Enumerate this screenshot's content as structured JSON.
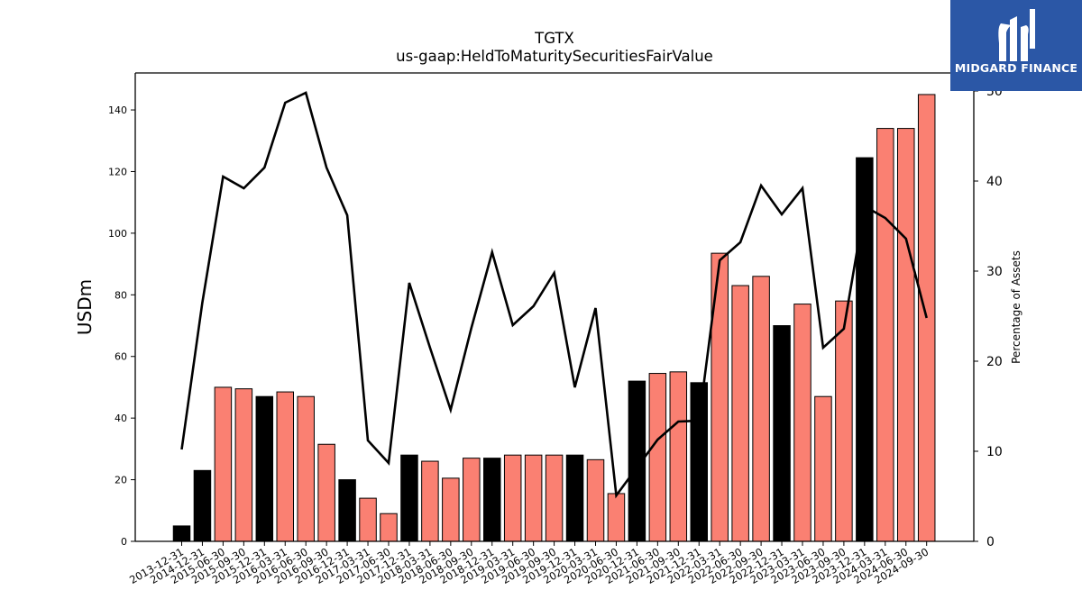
{
  "chart_data": {
    "type": "bar+line",
    "title": "TGTX",
    "subtitle": "us-gaap:HeldToMaturitySecuritiesFairValue",
    "ylabel": "USDm",
    "y2label": "Percentage of Assets",
    "ylim": [
      0,
      152
    ],
    "y2lim": [
      0,
      52
    ],
    "yticks": [
      0,
      20,
      40,
      60,
      80,
      100,
      120,
      140
    ],
    "y2ticks": [
      0,
      10,
      20,
      30,
      40,
      50
    ],
    "categories": [
      "2013-12-31",
      "2014-12-31",
      "2015-06-30",
      "2015-09-30",
      "2015-12-31",
      "2016-03-31",
      "2016-06-30",
      "2016-09-30",
      "2016-12-31",
      "2017-03-31",
      "2017-06-30",
      "2017-12-31",
      "2018-03-31",
      "2018-06-30",
      "2018-09-30",
      "2018-12-31",
      "2019-03-31",
      "2019-06-30",
      "2019-09-30",
      "2019-12-31",
      "2020-03-31",
      "2020-06-30",
      "2020-12-31",
      "2021-06-30",
      "2021-09-30",
      "2021-12-31",
      "2022-03-31",
      "2022-06-30",
      "2022-09-30",
      "2022-12-31",
      "2023-03-31",
      "2023-06-30",
      "2023-09-30",
      "2023-12-31",
      "2024-03-31",
      "2024-06-30",
      "2024-09-30"
    ],
    "series": [
      {
        "kind": "bar",
        "values": [
          5,
          23,
          50,
          49.5,
          47,
          48.5,
          47,
          31.5,
          20,
          14,
          9,
          28,
          26,
          20.5,
          27,
          27,
          28,
          28,
          28,
          28,
          26.5,
          15.5,
          52,
          54.5,
          55,
          51.5,
          93.5,
          83,
          86,
          70,
          77,
          47,
          78,
          124.5,
          134,
          134,
          145
        ],
        "annual": [
          true,
          true,
          false,
          false,
          true,
          false,
          false,
          false,
          true,
          false,
          false,
          true,
          false,
          false,
          false,
          true,
          false,
          false,
          false,
          true,
          false,
          false,
          true,
          false,
          false,
          true,
          false,
          false,
          false,
          true,
          false,
          false,
          false,
          true,
          false,
          false,
          false
        ]
      },
      {
        "kind": "line",
        "axis": "y2",
        "values": [
          10.2,
          26.5,
          40.5,
          39.2,
          41.5,
          48.7,
          49.8,
          41.5,
          36.2,
          11.2,
          8.7,
          28.7,
          21.5,
          14.6,
          23.7,
          32.1,
          24,
          26.1,
          29.8,
          17.1,
          25.9,
          5.1,
          8.2,
          11.3,
          13.3,
          13.4,
          31.2,
          33.2,
          39.5,
          36.3,
          39.2,
          21.5,
          23.6,
          37.2,
          35.9,
          33.6,
          24.8
        ]
      }
    ],
    "colors": {
      "annual_bar": "#000000",
      "quarter_bar": "#fa8072",
      "bar_edge": "#000000",
      "line": "#000000"
    },
    "grid": false,
    "legend": "none"
  },
  "logo": {
    "text": "MIDGARD FINANCE",
    "bg": "#2b57a6"
  }
}
